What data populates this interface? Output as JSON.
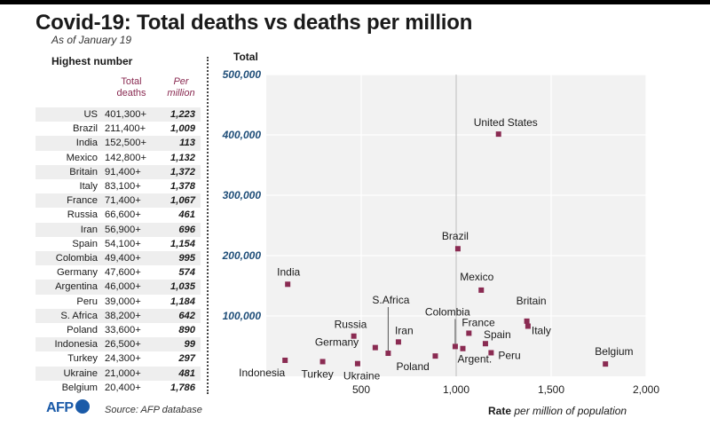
{
  "header": {
    "title": "Covid-19: Total deaths vs deaths per million",
    "subtitle": "As of January 19"
  },
  "table": {
    "title": "Highest number",
    "col_total": "Total deaths",
    "col_rate": "Per million",
    "rows": [
      {
        "country": "US",
        "total": "401,300+",
        "rate": "1,223"
      },
      {
        "country": "Brazil",
        "total": "211,400+",
        "rate": "1,009"
      },
      {
        "country": "India",
        "total": "152,500+",
        "rate": "113"
      },
      {
        "country": "Mexico",
        "total": "142,800+",
        "rate": "1,132"
      },
      {
        "country": "Britain",
        "total": "91,400+",
        "rate": "1,372"
      },
      {
        "country": "Italy",
        "total": "83,100+",
        "rate": "1,378"
      },
      {
        "country": "France",
        "total": "71,400+",
        "rate": "1,067"
      },
      {
        "country": "Russia",
        "total": "66,600+",
        "rate": "461"
      },
      {
        "country": "Iran",
        "total": "56,900+",
        "rate": "696"
      },
      {
        "country": "Spain",
        "total": "54,100+",
        "rate": "1,154"
      },
      {
        "country": "Colombia",
        "total": "49,400+",
        "rate": "995"
      },
      {
        "country": "Germany",
        "total": "47,600+",
        "rate": "574"
      },
      {
        "country": "Argentina",
        "total": "46,000+",
        "rate": "1,035"
      },
      {
        "country": "Peru",
        "total": "39,000+",
        "rate": "1,184"
      },
      {
        "country": "S. Africa",
        "total": "38,200+",
        "rate": "642"
      },
      {
        "country": "Poland",
        "total": "33,600+",
        "rate": "890"
      },
      {
        "country": "Indonesia",
        "total": "26,500+",
        "rate": "99"
      },
      {
        "country": "Turkey",
        "total": "24,300+",
        "rate": "297"
      },
      {
        "country": "Ukraine",
        "total": "21,000+",
        "rate": "481"
      },
      {
        "country": "Belgium",
        "total": "20,400+",
        "rate": "1,786"
      }
    ]
  },
  "footer": {
    "logo": "AFP",
    "source": "Source: AFP database"
  },
  "chart_data": {
    "type": "scatter",
    "title": "Covid-19: Total deaths vs deaths per million",
    "ylabel": "Total",
    "xlabel": "Rate",
    "xlabel_note": "per million of population",
    "xlim": [
      0,
      2000
    ],
    "ylim": [
      0,
      500000
    ],
    "xticks": [
      500,
      1000,
      1500,
      2000
    ],
    "xtick_labels": [
      "500",
      "1,000",
      "1,500",
      "2,000"
    ],
    "yticks": [
      100000,
      200000,
      300000,
      400000,
      500000
    ],
    "ytick_labels": [
      "100,000",
      "200,000",
      "300,000",
      "400,000",
      "500,000"
    ],
    "marker_color": "#8a2b52",
    "points": [
      {
        "label": "United States",
        "x": 1223,
        "y": 401300
      },
      {
        "label": "Brazil",
        "x": 1009,
        "y": 211400
      },
      {
        "label": "India",
        "x": 113,
        "y": 152500
      },
      {
        "label": "Mexico",
        "x": 1132,
        "y": 142800
      },
      {
        "label": "Britain",
        "x": 1372,
        "y": 91400
      },
      {
        "label": "Italy",
        "x": 1378,
        "y": 83100
      },
      {
        "label": "France",
        "x": 1067,
        "y": 71400
      },
      {
        "label": "Russia",
        "x": 461,
        "y": 66600
      },
      {
        "label": "Iran",
        "x": 696,
        "y": 56900
      },
      {
        "label": "Spain",
        "x": 1154,
        "y": 54100
      },
      {
        "label": "Colombia",
        "x": 995,
        "y": 49400
      },
      {
        "label": "Germany",
        "x": 574,
        "y": 47600
      },
      {
        "label": "Argent.",
        "x": 1035,
        "y": 46000
      },
      {
        "label": "Peru",
        "x": 1184,
        "y": 39000
      },
      {
        "label": "S.Africa",
        "x": 642,
        "y": 38200
      },
      {
        "label": "Poland",
        "x": 890,
        "y": 33600
      },
      {
        "label": "Indonesia",
        "x": 99,
        "y": 26500
      },
      {
        "label": "Turkey",
        "x": 297,
        "y": 24300
      },
      {
        "label": "Ukraine",
        "x": 481,
        "y": 21000
      },
      {
        "label": "Belgium",
        "x": 1786,
        "y": 20400
      }
    ]
  }
}
